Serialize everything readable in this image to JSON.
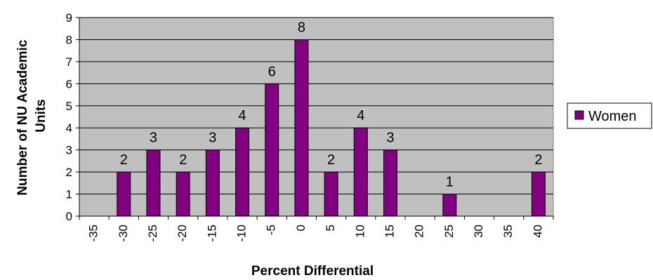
{
  "chart_data": {
    "type": "bar",
    "title": "",
    "xlabel": "Percent Differential",
    "ylabel_lines": [
      "Number of NU Academic",
      "Units"
    ],
    "categories": [
      "-35",
      "-30",
      "-25",
      "-20",
      "-15",
      "-10",
      "-5",
      "0",
      "5",
      "10",
      "15",
      "20",
      "25",
      "30",
      "35",
      "40"
    ],
    "series": [
      {
        "name": "Women",
        "color": "#800080",
        "values": [
          0,
          2,
          3,
          2,
          3,
          4,
          6,
          8,
          2,
          4,
          3,
          0,
          1,
          0,
          0,
          2
        ]
      }
    ],
    "yticks": [
      "0",
      "1",
      "2",
      "3",
      "4",
      "5",
      "6",
      "7",
      "8",
      "9"
    ],
    "ylim": [
      0,
      9
    ],
    "grid": true,
    "plot_background": "#c0c0c0",
    "legend_position": "right"
  }
}
